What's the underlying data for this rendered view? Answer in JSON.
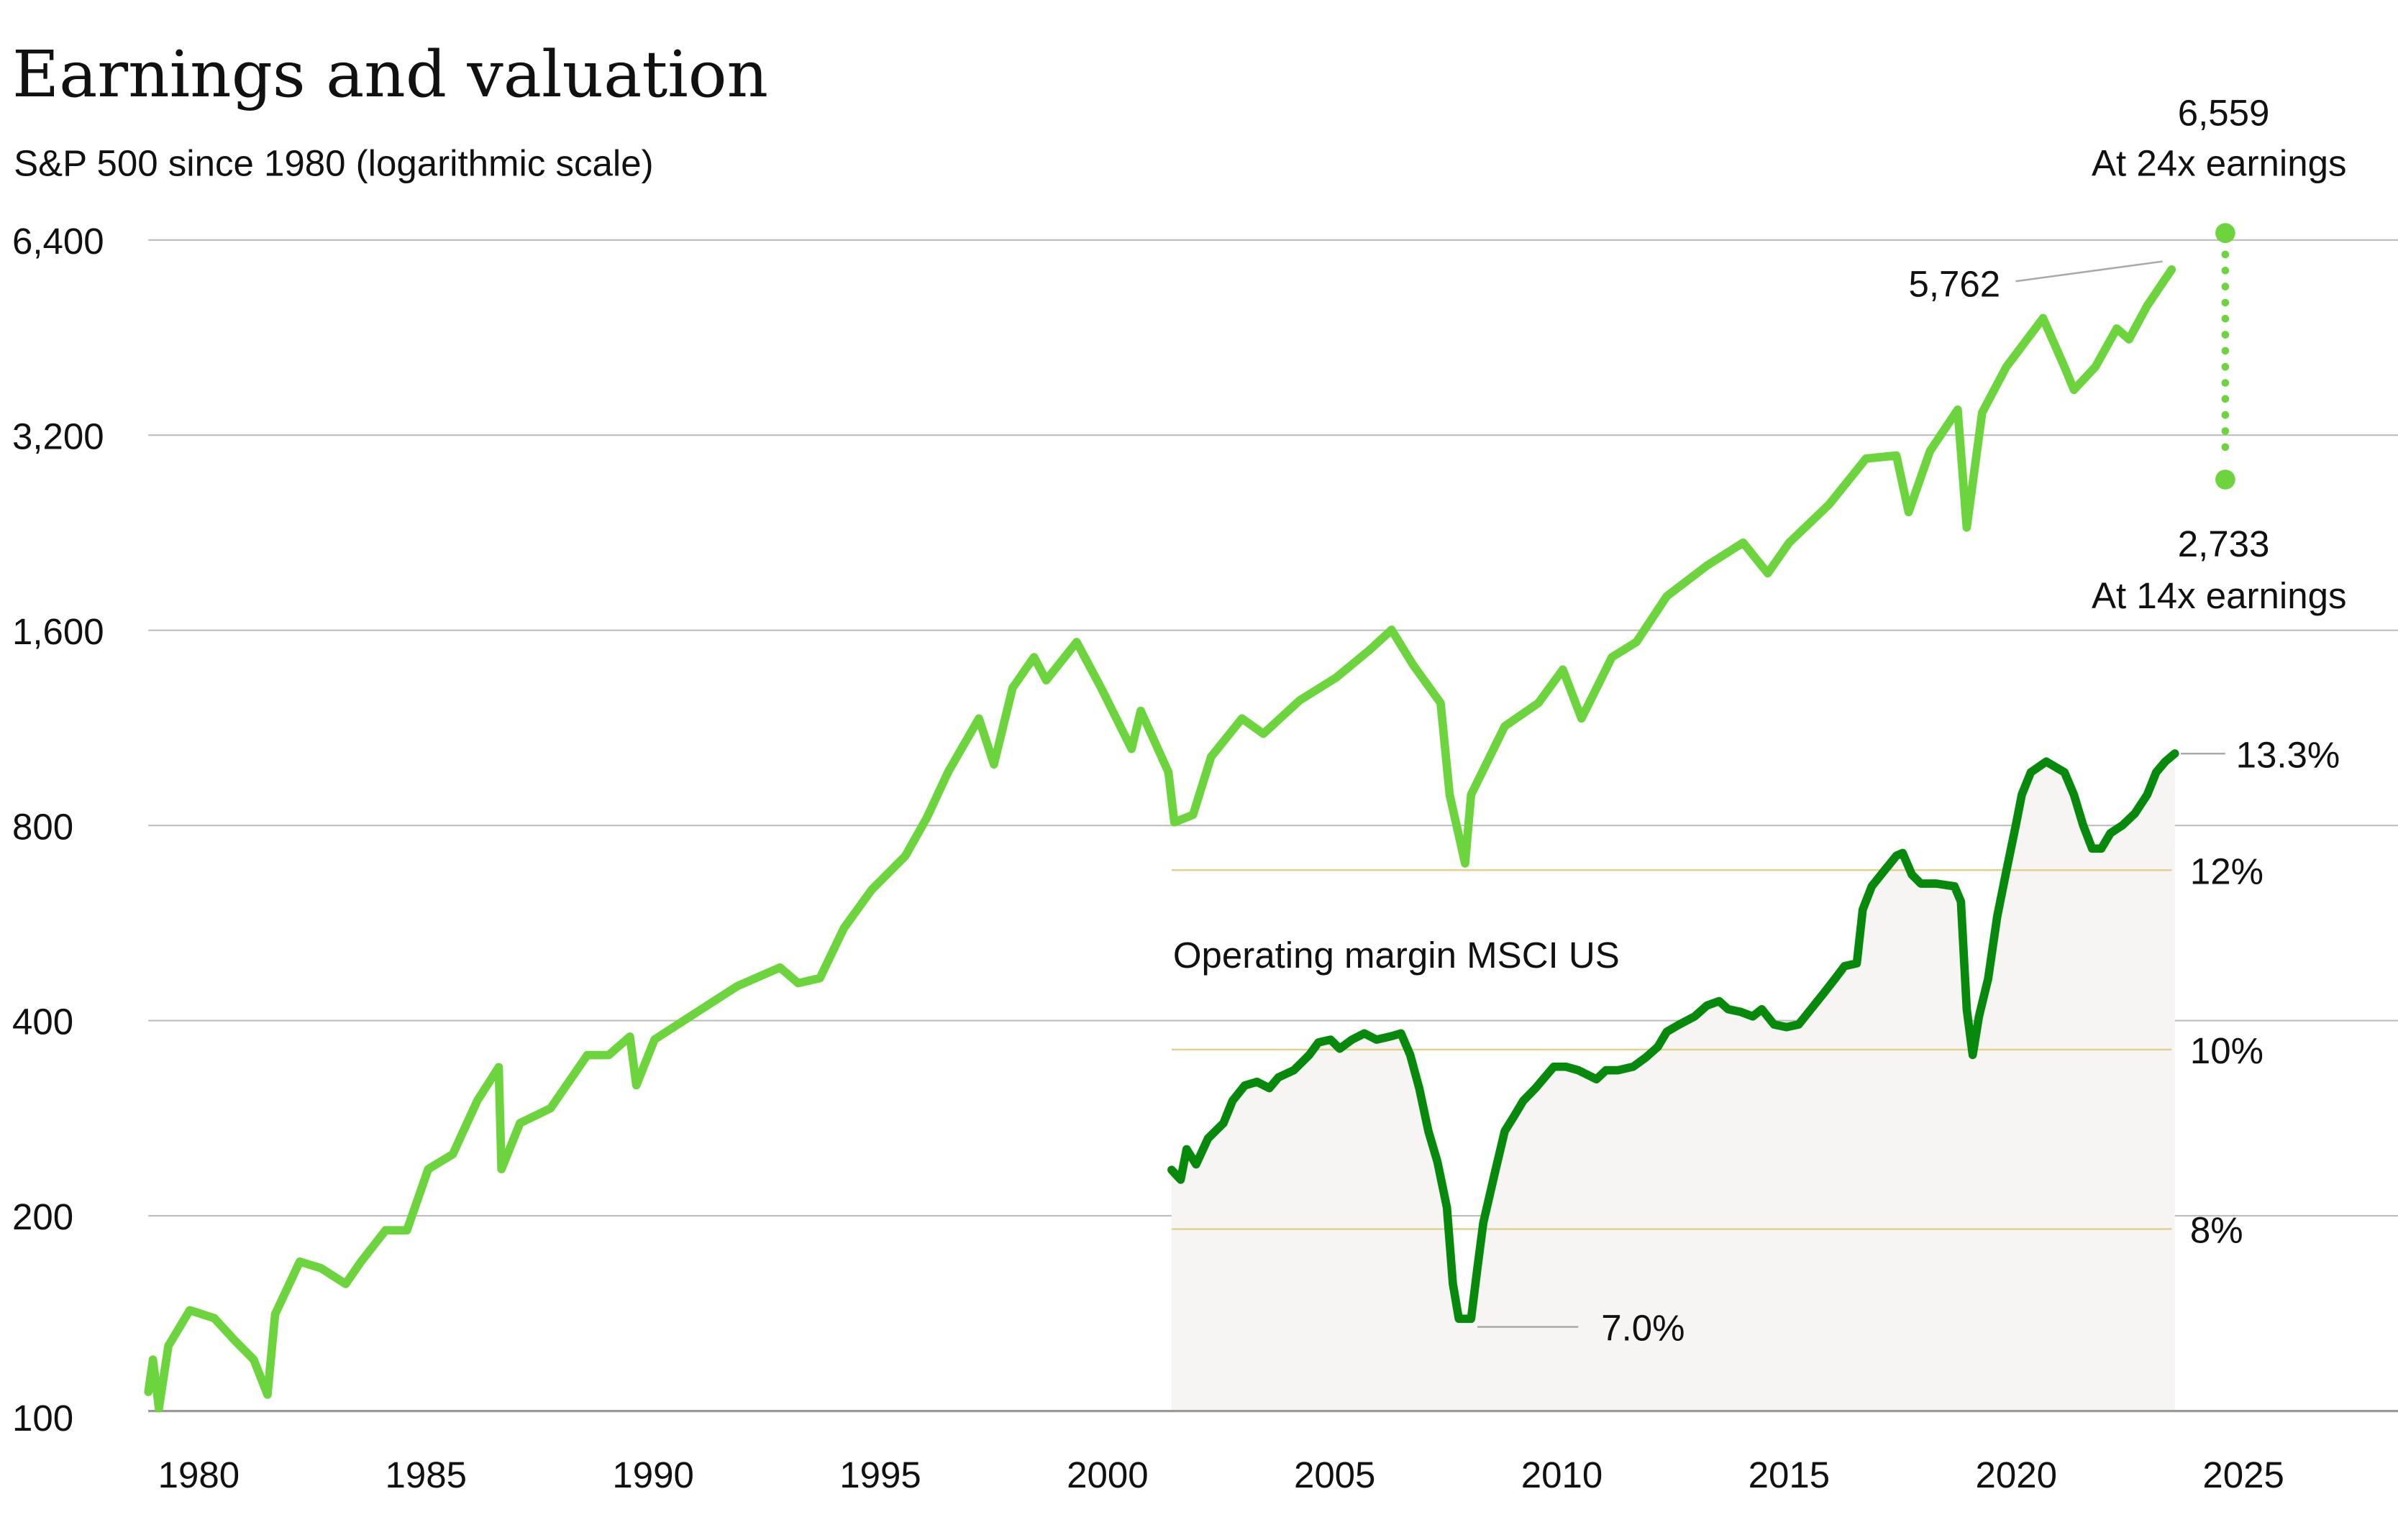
{
  "title": "Earnings and valuation",
  "subtitle": "S&P 500 since 1980 (logarithmic scale)",
  "colors": {
    "sp500": "#6cd43c",
    "margin": "#078a0c",
    "margin_area": "#f6f5f3",
    "margin_grid": "#e2d18f",
    "grid": "#bdbdbd"
  },
  "chart_data": [
    {
      "type": "line",
      "title": "Earnings and valuation",
      "subtitle": "S&P 500 since 1980 (logarithmic scale)",
      "y_scale": "log",
      "ylim": [
        100,
        6400
      ],
      "xlim": [
        1979,
        2028
      ],
      "grid": true,
      "x_ticks": [
        "1980",
        "1985",
        "1990",
        "1995",
        "2000",
        "2005",
        "2010",
        "2015",
        "2020",
        "2025"
      ],
      "y_ticks": [
        {
          "value": 100,
          "label": "100"
        },
        {
          "value": 200,
          "label": "200"
        },
        {
          "value": 400,
          "label": "400"
        },
        {
          "value": 800,
          "label": "800"
        },
        {
          "value": 1600,
          "label": "1,600"
        },
        {
          "value": 3200,
          "label": "3,200"
        },
        {
          "value": 6400,
          "label": "6,400"
        }
      ],
      "series": [
        {
          "x": [
            1978.89,
            1978.99,
            1979.12,
            1979.33,
            1979.8,
            1980.34,
            1980.81,
            1981.21,
            1981.51,
            1981.68,
            1982.22,
            1982.69,
            1983.23,
            1983.57,
            1984.11,
            1984.58,
            1985.05,
            1985.59,
            1986.13,
            1986.6,
            1986.66,
            1987.07,
            1987.74,
            1988.55,
            1989.02,
            1989.49,
            1989.63,
            1990.03,
            1990.91,
            1991.85,
            1992.79,
            1993.19,
            1993.67,
            1994.2,
            1994.81,
            1995.55,
            1996.02,
            1996.49,
            1997.17,
            1997.5,
            1997.91,
            1998.38,
            1998.65,
            1999.32,
            1999.86,
            2000.53,
            2000.73,
            2001.34,
            2001.47,
            2001.88,
            2002.28,
            2002.96,
            2003.43,
            2004.23,
            2005.04,
            2005.78,
            2006.25,
            2006.73,
            2007.33,
            2007.53,
            2007.87,
            2008.0,
            2008.74,
            2009.48,
            2010.02,
            2010.43,
            2011.1,
            2011.64,
            2012.31,
            2013.19,
            2013.99,
            2014.53,
            2015.0,
            2015.88,
            2016.69,
            2017.36,
            2017.63,
            2018.1,
            2018.71,
            2018.91,
            2019.25,
            2019.78,
            2020.59,
            2021.06,
            2021.27,
            2021.74,
            2022.21,
            2022.48,
            2022.88,
            2023.42
          ],
          "y": [
            107,
            120,
            101,
            126,
            143,
            139,
            128,
            120,
            106,
            141,
            170,
            166,
            157,
            170,
            190,
            190,
            236,
            249,
            301,
            339,
            236,
            278,
            293,
            354,
            354,
            378,
            318,
            374,
            410,
            452,
            483,
            457,
            465,
            556,
            637,
            718,
            822,
            967,
            1170,
            994,
            1304,
            1454,
            1340,
            1535,
            1304,
            1050,
            1202,
            967,
            809,
            831,
            1021,
            1170,
            1108,
            1248,
            1354,
            1494,
            1603,
            1414,
            1236,
            892,
            699,
            892,
            1138,
            1236,
            1392,
            1170,
            1454,
            1535,
            1806,
            2013,
            2184,
            1959,
            2184,
            2502,
            2944,
            2976,
            2435,
            3025,
            3502,
            2305,
            3466,
            4078,
            4850,
            4078,
            3758,
            4078,
            4672,
            4497,
            5066,
            5762
          ]
        }
      ],
      "annotations": {
        "last_value": "5,762",
        "high_value": "6,559",
        "high_label": "At 24x earnings",
        "high": 6559,
        "low_value": "2,733",
        "low_label": "At 14x earnings",
        "low": 2733,
        "range_year": 2024.6
      }
    },
    {
      "type": "area",
      "series_label": "Operating margin MSCI US",
      "ylim": [
        6,
        14
      ],
      "y_ticks": [
        {
          "value": 8,
          "label": "8%"
        },
        {
          "value": 10,
          "label": "10%"
        },
        {
          "value": 12,
          "label": "12%"
        }
      ],
      "series": [
        {
          "name": "Operating margin MSCI US",
          "x": [
            2001.41,
            2001.61,
            2001.74,
            2001.95,
            2002.21,
            2002.55,
            2002.75,
            2003.02,
            2003.29,
            2003.56,
            2003.76,
            2004.1,
            2004.44,
            2004.64,
            2004.91,
            2005.11,
            2005.38,
            2005.65,
            2005.92,
            2006.25,
            2006.46,
            2006.66,
            2006.86,
            2007.06,
            2007.26,
            2007.47,
            2007.6,
            2007.73,
            2008.0,
            2008.14,
            2008.27,
            2008.54,
            2008.74,
            2008.95,
            2009.15,
            2009.42,
            2009.62,
            2009.82,
            2010.09,
            2010.36,
            2010.76,
            2010.97,
            2011.24,
            2011.57,
            2011.84,
            2012.11,
            2012.31,
            2012.58,
            2012.92,
            2013.19,
            2013.46,
            2013.66,
            2013.93,
            2014.2,
            2014.4,
            2014.67,
            2014.94,
            2015.21,
            2015.48,
            2015.75,
            2016.01,
            2016.22,
            2016.49,
            2016.62,
            2016.82,
            2017.09,
            2017.36,
            2017.5,
            2017.7,
            2017.9,
            2018.24,
            2018.64,
            2018.78,
            2018.91,
            2019.04,
            2019.18,
            2019.38,
            2019.58,
            2019.78,
            2019.99,
            2020.12,
            2020.32,
            2020.66,
            2021.06,
            2021.27,
            2021.47,
            2021.67,
            2021.87,
            2022.07,
            2022.34,
            2022.61,
            2022.88,
            2023.08,
            2023.28,
            2023.49
          ],
          "y": [
            8.66,
            8.55,
            8.89,
            8.72,
            9.01,
            9.18,
            9.43,
            9.6,
            9.64,
            9.57,
            9.69,
            9.77,
            9.94,
            10.08,
            10.11,
            10.01,
            10.11,
            10.18,
            10.11,
            10.15,
            10.18,
            9.94,
            9.57,
            9.09,
            8.75,
            8.24,
            7.39,
            7.0,
            7.0,
            7.56,
            8.07,
            8.66,
            9.09,
            9.26,
            9.43,
            9.57,
            9.69,
            9.81,
            9.81,
            9.77,
            9.67,
            9.77,
            9.77,
            9.81,
            9.91,
            10.03,
            10.2,
            10.28,
            10.37,
            10.49,
            10.54,
            10.45,
            10.42,
            10.37,
            10.45,
            10.28,
            10.25,
            10.28,
            10.45,
            10.62,
            10.79,
            10.93,
            10.96,
            11.56,
            11.82,
            11.99,
            12.16,
            12.19,
            11.95,
            11.85,
            11.85,
            11.82,
            11.65,
            10.45,
            9.94,
            10.37,
            10.79,
            11.48,
            11.99,
            12.5,
            12.84,
            13.09,
            13.21,
            13.09,
            12.84,
            12.5,
            12.24,
            12.24,
            12.41,
            12.5,
            12.63,
            12.84,
            13.09,
            13.21,
            13.3
          ]
        }
      ],
      "annotations": {
        "min_label": "7.0%",
        "min": 7.0,
        "last_label": "13.3%",
        "last": 13.3
      }
    }
  ]
}
